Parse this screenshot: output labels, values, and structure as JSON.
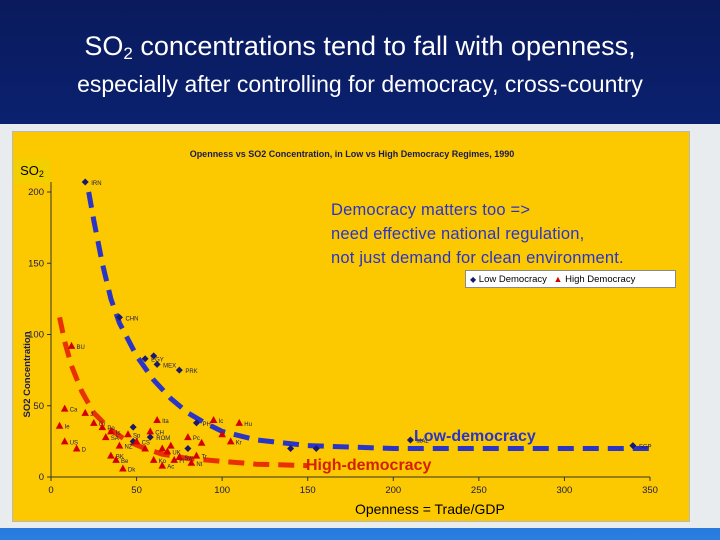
{
  "slide": {
    "title_main": "SO",
    "title_sub": "2",
    "title_rest": " concentrations tend to fall with openness,",
    "subtitle": "especially after controlling for democracy, cross-country"
  },
  "so2_label_main": "SO",
  "so2_label_sub": "2",
  "note_lines": [
    "Democracy matters too   =>",
    "need effective national regulation,",
    "not just demand for clean environment."
  ],
  "callouts": {
    "low": "Low-democracy",
    "high": "High-democracy"
  },
  "openness_label": "Openness =   Trade/GDP",
  "legend": {
    "low": "Low Democracy",
    "high": "High Democracy"
  },
  "colors": {
    "low_series": "#1a1a6c",
    "high_series": "#d40000",
    "low_trend": "#2a35c8",
    "high_trend": "#e83000",
    "panel": "#fcc800"
  },
  "chart_data": {
    "type": "scatter",
    "title": "Openness vs SO2 Concentration, in Low vs High Democracy Regimes, 1990",
    "ylabel": "SO2 Concentration",
    "xlabel": "",
    "xlim": [
      0,
      350
    ],
    "ylim": [
      0,
      200
    ],
    "xticks": [
      0,
      50,
      100,
      150,
      200,
      250,
      300,
      350
    ],
    "yticks": [
      0,
      50,
      100,
      150,
      200
    ],
    "legend_position": "top-right",
    "series": [
      {
        "name": "Low Democracy",
        "marker": "diamond",
        "points": [
          {
            "x": 20,
            "y": 207,
            "label": "IRN"
          },
          {
            "x": 40,
            "y": 112,
            "label": "CHN"
          },
          {
            "x": 55,
            "y": 83,
            "label": "EGY"
          },
          {
            "x": 60,
            "y": 85,
            "label": ""
          },
          {
            "x": 62,
            "y": 79,
            "label": "MEX"
          },
          {
            "x": 75,
            "y": 75,
            "label": "PRK"
          },
          {
            "x": 48,
            "y": 35,
            "label": ""
          },
          {
            "x": 58,
            "y": 28,
            "label": "ROM"
          },
          {
            "x": 48,
            "y": 25,
            "label": ""
          },
          {
            "x": 140,
            "y": 20,
            "label": ""
          },
          {
            "x": 155,
            "y": 20,
            "label": ""
          },
          {
            "x": 210,
            "y": 26,
            "label": "MAL"
          },
          {
            "x": 340,
            "y": 22,
            "label": "SGP"
          },
          {
            "x": 85,
            "y": 38,
            "label": "PH"
          },
          {
            "x": 80,
            "y": 20,
            "label": ""
          }
        ]
      },
      {
        "name": "High Democracy",
        "marker": "triangle",
        "points": [
          {
            "x": 12,
            "y": 92,
            "label": "BU"
          },
          {
            "x": 20,
            "y": 45,
            "label": "J"
          },
          {
            "x": 25,
            "y": 38,
            "label": "Gr"
          },
          {
            "x": 30,
            "y": 35,
            "label": "Po"
          },
          {
            "x": 32,
            "y": 28,
            "label": "SA"
          },
          {
            "x": 35,
            "y": 32,
            "label": "Is"
          },
          {
            "x": 40,
            "y": 22,
            "label": "NZ"
          },
          {
            "x": 45,
            "y": 30,
            "label": "Sp"
          },
          {
            "x": 50,
            "y": 25,
            "label": "CS"
          },
          {
            "x": 55,
            "y": 20,
            "label": ""
          },
          {
            "x": 58,
            "y": 32,
            "label": "CH"
          },
          {
            "x": 62,
            "y": 40,
            "label": "Ita"
          },
          {
            "x": 65,
            "y": 20,
            "label": ""
          },
          {
            "x": 68,
            "y": 18,
            "label": "UK"
          },
          {
            "x": 70,
            "y": 22,
            "label": ""
          },
          {
            "x": 72,
            "y": 12,
            "label": "Fi"
          },
          {
            "x": 75,
            "y": 14,
            "label": "Sw"
          },
          {
            "x": 80,
            "y": 28,
            "label": "Pc"
          },
          {
            "x": 82,
            "y": 10,
            "label": "Nt"
          },
          {
            "x": 85,
            "y": 15,
            "label": "Tr"
          },
          {
            "x": 88,
            "y": 24,
            "label": ""
          },
          {
            "x": 95,
            "y": 40,
            "label": "Ic"
          },
          {
            "x": 100,
            "y": 30,
            "label": ""
          },
          {
            "x": 105,
            "y": 25,
            "label": "Kr"
          },
          {
            "x": 110,
            "y": 38,
            "label": "Hu"
          },
          {
            "x": 8,
            "y": 48,
            "label": "Ca"
          },
          {
            "x": 5,
            "y": 36,
            "label": "Ie"
          },
          {
            "x": 8,
            "y": 25,
            "label": "US"
          },
          {
            "x": 15,
            "y": 20,
            "label": "D"
          },
          {
            "x": 35,
            "y": 15,
            "label": "BK"
          },
          {
            "x": 38,
            "y": 12,
            "label": "Be"
          },
          {
            "x": 42,
            "y": 6,
            "label": "Dk"
          },
          {
            "x": 60,
            "y": 12,
            "label": "Ko"
          },
          {
            "x": 65,
            "y": 8,
            "label": "Ac"
          }
        ]
      }
    ],
    "trend_lines": [
      {
        "name": "Low-democracy",
        "style": "dashed",
        "x": [
          22,
          25,
          30,
          35,
          40,
          50,
          60,
          70,
          80,
          90,
          100,
          120,
          150,
          200,
          250,
          300,
          350
        ],
        "y": [
          200,
          180,
          150,
          125,
          108,
          85,
          68,
          55,
          45,
          38,
          32,
          26,
          22,
          20,
          20,
          20,
          20
        ]
      },
      {
        "name": "High-democracy",
        "style": "dashed",
        "x": [
          5,
          8,
          12,
          18,
          25,
          35,
          45,
          55,
          65,
          80,
          100,
          120,
          150
        ],
        "y": [
          112,
          95,
          78,
          60,
          45,
          33,
          25,
          20,
          16,
          13,
          11,
          9,
          8
        ]
      }
    ]
  }
}
